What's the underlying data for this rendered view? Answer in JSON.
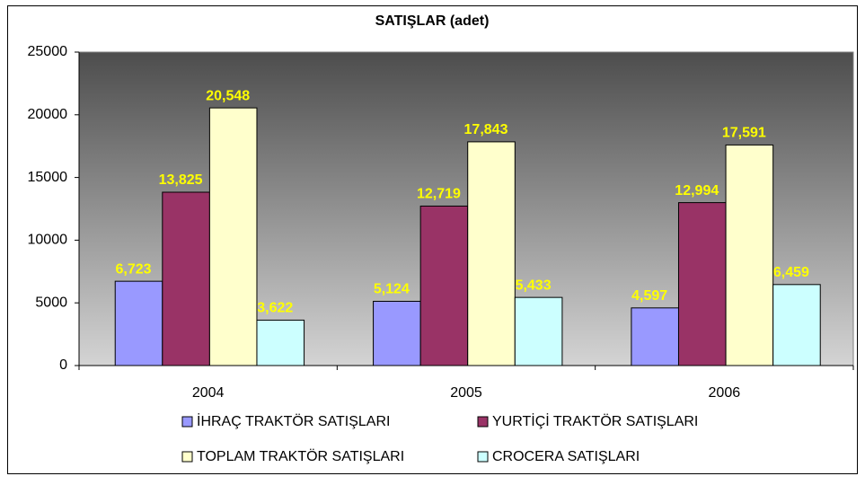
{
  "chart_data": {
    "type": "bar",
    "title": "SATIŞLAR (adet)",
    "categories": [
      "2004",
      "2005",
      "2006"
    ],
    "series": [
      {
        "name": "İHRAÇ TRAKTÖR SATIŞLARI",
        "color": "#9999ff",
        "values": [
          6723,
          5124,
          4597
        ],
        "value_labels": [
          "6,723",
          "5,124",
          "4,597"
        ]
      },
      {
        "name": "YURTİÇİ TRAKTÖR SATIŞLARI",
        "color": "#993366",
        "values": [
          13825,
          12719,
          12994
        ],
        "value_labels": [
          "13,825",
          "12,719",
          "12,994"
        ]
      },
      {
        "name": "TOPLAM TRAKTÖR SATIŞLARI",
        "color": "#ffffcc",
        "values": [
          20548,
          17843,
          17591
        ],
        "value_labels": [
          "20,548",
          "17,843",
          "17,591"
        ]
      },
      {
        "name": "CROCERA SATIŞLARI",
        "color": "#ccffff",
        "values": [
          3622,
          5433,
          6459
        ],
        "value_labels": [
          "3,622",
          "5,433",
          "6,459"
        ]
      }
    ],
    "ylim": [
      0,
      25000
    ],
    "yticks": [
      0,
      5000,
      10000,
      15000,
      20000,
      25000
    ]
  }
}
